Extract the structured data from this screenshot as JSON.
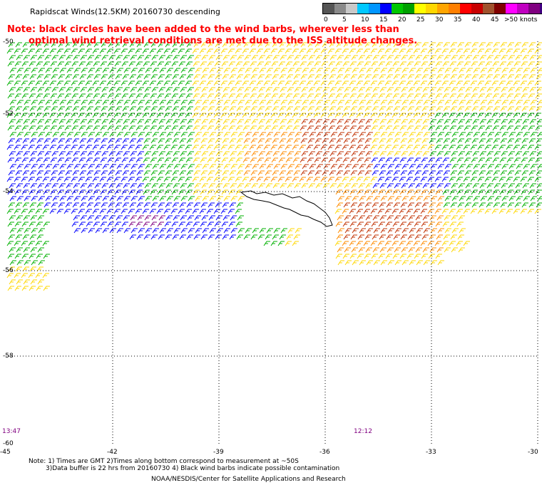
{
  "header": {
    "title": "Rapidscat Winds(12.5KM) 20160730 descending",
    "note_line1": "Note: black circles have been added to the wind barbs, wherever less than",
    "note_line2": "optimal wind retrieval conditions are met due to the ISS altitude changes."
  },
  "legend": {
    "unit": ">50 knots",
    "labels": [
      "0",
      "5",
      "10",
      "15",
      "20",
      "25",
      "30",
      "35",
      "40",
      "45"
    ],
    "colors": [
      "#555555",
      "#8a8a8a",
      "#c8c8c8",
      "#00c8ff",
      "#0096ff",
      "#0000ff",
      "#00c800",
      "#00a000",
      "#ffff00",
      "#ffd700",
      "#ffa500",
      "#ff7f00",
      "#ff0000",
      "#c80000",
      "#a0522d",
      "#800000",
      "#ff00ff",
      "#c000c0",
      "#800080",
      "#400080"
    ]
  },
  "axes": {
    "lat_labels": [
      "-50",
      "-52",
      "-54",
      "-56",
      "-58",
      "-60"
    ],
    "lon_labels": [
      "-45",
      "-42",
      "-39",
      "-36",
      "-33",
      "-30"
    ]
  },
  "times": {
    "left": "13:47",
    "right": "12:12"
  },
  "footnotes": {
    "line1": "Note: 1) Times are GMT 2)Times along bottom correspond to measurement at ~50S",
    "line2": "3)Data buffer is 22 hrs from 20160730 4) Black wind barbs indicate possible contamination",
    "credit": "NOAA/NESDIS/Center for Satellite Applications and Research"
  },
  "wind_colors": {
    "blue": "#0000ff",
    "green": "#00b000",
    "yellow": "#ffd700",
    "orange": "#ff8c00",
    "red": "#c03000",
    "purple": "#800080"
  }
}
